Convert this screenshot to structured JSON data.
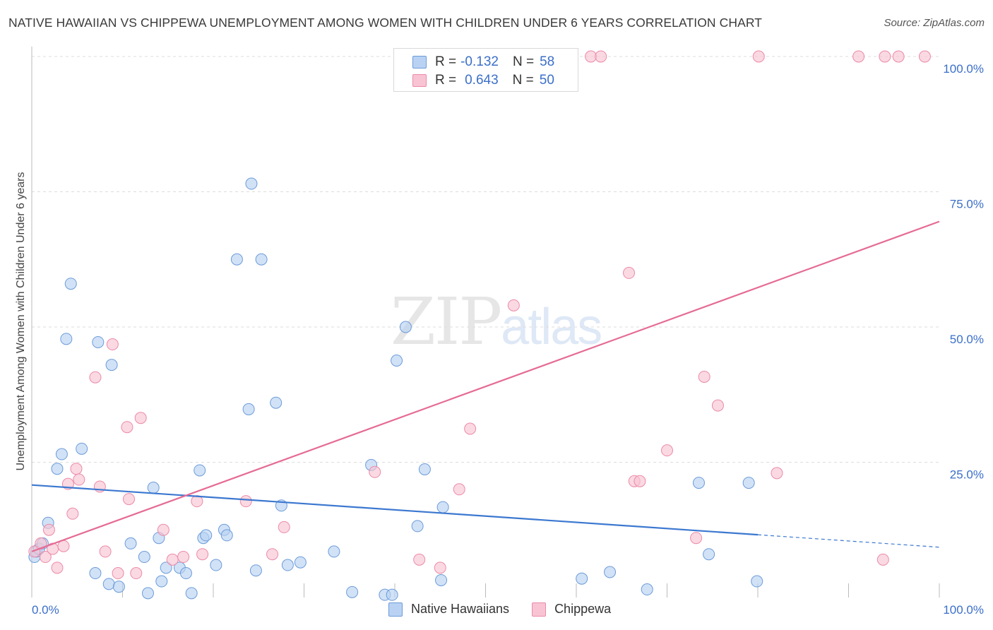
{
  "title": "NATIVE HAWAIIAN VS CHIPPEWA UNEMPLOYMENT AMONG WOMEN WITH CHILDREN UNDER 6 YEARS CORRELATION CHART",
  "source": "Source: ZipAtlas.com",
  "watermark": {
    "zip": "ZIP",
    "atlas": "atlas"
  },
  "legend": {
    "rows": [
      {
        "r_label": "R =",
        "r_value": "-0.132",
        "n_label": "N =",
        "n_value": "58"
      },
      {
        "r_label": "R =",
        "r_value": "0.643",
        "n_label": "N =",
        "n_value": "50"
      }
    ]
  },
  "bottom_legend": [
    "Native Hawaiians",
    "Chippewa"
  ],
  "colors": {
    "blue_fill": "#b9d2f3",
    "blue_stroke": "#6c9bd9",
    "blue_line": "#3c78d0",
    "pink_fill": "#f8c4d3",
    "pink_stroke": "#ec8aa8",
    "pink_line": "#e56b94",
    "tick_label": "#3b6fc9",
    "grid": "#dddddd"
  },
  "chart_data": {
    "type": "scatter",
    "title": "NATIVE HAWAIIAN VS CHIPPEWA UNEMPLOYMENT AMONG WOMEN WITH CHILDREN UNDER 6 YEARS CORRELATION CHART",
    "xlabel": "",
    "ylabel": "Unemployment Among Women with Children Under 6 years",
    "xlim": [
      0,
      100
    ],
    "ylim": [
      0,
      100
    ],
    "x_tick_labels": [
      "0.0%",
      "100.0%"
    ],
    "y_tick_labels": [
      "25.0%",
      "50.0%",
      "75.0%",
      "100.0%"
    ],
    "y_ticks": [
      25,
      50,
      75,
      100
    ],
    "series": [
      {
        "name": "Native Hawaiians",
        "r": -0.132,
        "n": 58,
        "trend": {
          "x0": 0,
          "y0": 20.8,
          "x1": 80,
          "y1": 11.6,
          "dash_x1": 100,
          "dash_y1": 9.3
        },
        "points": [
          [
            0.3,
            7.5
          ],
          [
            0.5,
            8.5
          ],
          [
            0.8,
            9.0
          ],
          [
            1.2,
            10.0
          ],
          [
            1.8,
            13.8
          ],
          [
            2.8,
            23.8
          ],
          [
            3.3,
            26.5
          ],
          [
            3.8,
            47.8
          ],
          [
            4.3,
            58.0
          ],
          [
            5.5,
            27.5
          ],
          [
            7.0,
            4.5
          ],
          [
            7.3,
            47.2
          ],
          [
            8.5,
            2.5
          ],
          [
            8.8,
            43.0
          ],
          [
            9.6,
            2.0
          ],
          [
            10.9,
            10.0
          ],
          [
            12.4,
            7.5
          ],
          [
            12.8,
            0.8
          ],
          [
            13.4,
            20.3
          ],
          [
            14.0,
            11.0
          ],
          [
            14.3,
            3.0
          ],
          [
            14.8,
            5.5
          ],
          [
            16.3,
            5.5
          ],
          [
            17.0,
            4.5
          ],
          [
            17.6,
            0.8
          ],
          [
            18.5,
            23.5
          ],
          [
            18.9,
            11.0
          ],
          [
            19.2,
            11.5
          ],
          [
            20.3,
            6.0
          ],
          [
            21.2,
            12.5
          ],
          [
            21.5,
            11.5
          ],
          [
            22.6,
            62.5
          ],
          [
            23.9,
            34.8
          ],
          [
            24.2,
            76.5
          ],
          [
            24.7,
            5.0
          ],
          [
            25.3,
            62.5
          ],
          [
            26.9,
            36.0
          ],
          [
            27.5,
            17.0
          ],
          [
            28.2,
            6.0
          ],
          [
            29.6,
            6.5
          ],
          [
            33.3,
            8.5
          ],
          [
            35.3,
            1.0
          ],
          [
            37.4,
            24.5
          ],
          [
            38.9,
            0.5
          ],
          [
            39.7,
            0.5
          ],
          [
            40.2,
            43.8
          ],
          [
            41.2,
            50.0
          ],
          [
            42.5,
            13.2
          ],
          [
            43.3,
            23.7
          ],
          [
            45.1,
            3.2
          ],
          [
            45.3,
            16.7
          ],
          [
            60.6,
            3.5
          ],
          [
            63.7,
            4.7
          ],
          [
            67.8,
            1.5
          ],
          [
            73.5,
            21.2
          ],
          [
            74.6,
            8.0
          ],
          [
            79.0,
            21.2
          ],
          [
            79.9,
            3.0
          ]
        ]
      },
      {
        "name": "Chippewa",
        "r": 0.643,
        "n": 50,
        "trend": {
          "x0": 0,
          "y0": 8.5,
          "x1": 100,
          "y1": 69.5
        },
        "points": [
          [
            0.3,
            8.5
          ],
          [
            1.0,
            10.0
          ],
          [
            1.5,
            7.5
          ],
          [
            1.9,
            12.5
          ],
          [
            2.3,
            9.0
          ],
          [
            2.8,
            5.5
          ],
          [
            3.5,
            9.5
          ],
          [
            4.0,
            21.0
          ],
          [
            4.5,
            15.5
          ],
          [
            4.9,
            23.8
          ],
          [
            5.2,
            21.8
          ],
          [
            7.0,
            40.7
          ],
          [
            7.5,
            20.5
          ],
          [
            8.1,
            8.5
          ],
          [
            8.9,
            46.8
          ],
          [
            9.5,
            4.5
          ],
          [
            10.5,
            31.5
          ],
          [
            10.7,
            18.2
          ],
          [
            11.5,
            4.5
          ],
          [
            12.0,
            33.2
          ],
          [
            14.5,
            12.5
          ],
          [
            15.5,
            7.0
          ],
          [
            16.7,
            7.5
          ],
          [
            18.2,
            17.8
          ],
          [
            18.8,
            8.0
          ],
          [
            23.6,
            17.8
          ],
          [
            26.5,
            8.0
          ],
          [
            27.8,
            13.0
          ],
          [
            37.8,
            23.2
          ],
          [
            42.7,
            7.0
          ],
          [
            45.0,
            5.5
          ],
          [
            47.1,
            20.0
          ],
          [
            48.3,
            31.2
          ],
          [
            53.1,
            54.0
          ],
          [
            61.6,
            100
          ],
          [
            62.7,
            100
          ],
          [
            65.8,
            60.0
          ],
          [
            66.4,
            21.5
          ],
          [
            67.0,
            21.5
          ],
          [
            70.0,
            27.2
          ],
          [
            73.2,
            11.0
          ],
          [
            74.1,
            40.8
          ],
          [
            75.6,
            35.5
          ],
          [
            80.1,
            100
          ],
          [
            82.1,
            23.0
          ],
          [
            91.1,
            100
          ],
          [
            93.8,
            7.0
          ],
          [
            94.0,
            100
          ],
          [
            95.5,
            100
          ],
          [
            98.4,
            100
          ]
        ]
      }
    ]
  }
}
